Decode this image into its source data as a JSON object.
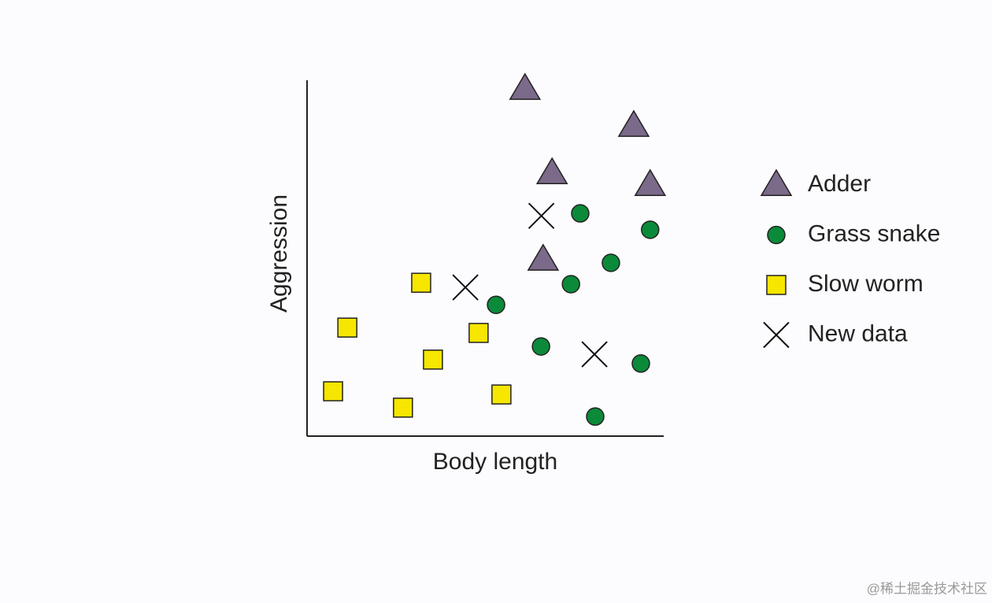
{
  "chart_data": {
    "type": "scatter",
    "x_label": "Body length",
    "y_label": "Aggression",
    "xlim": [
      0,
      100
    ],
    "ylim": [
      0,
      100
    ],
    "series": [
      {
        "name": "Adder",
        "color": "#7b6a8a",
        "marker": "triangle",
        "x": [
          61.1,
          91.6,
          68.7,
          96.2,
          66.2
        ],
        "values": [
          97.6,
          87.2,
          73.9,
          70.6,
          49.6
        ]
      },
      {
        "name": "Grass snake",
        "color": "#0b8a3a",
        "marker": "circle",
        "x": [
          76.6,
          96.2,
          85.2,
          74.0,
          53.0,
          65.6,
          93.6,
          80.8
        ],
        "values": [
          62.6,
          58.0,
          48.7,
          42.7,
          36.9,
          25.2,
          20.4,
          5.5
        ]
      },
      {
        "name": "Slow worm",
        "color": "#f7e600",
        "marker": "square",
        "x": [
          32.0,
          11.3,
          48.1,
          35.3,
          7.3,
          26.9,
          54.5
        ],
        "values": [
          43.1,
          30.5,
          29.0,
          21.5,
          12.6,
          8.0,
          11.7
        ]
      },
      {
        "name": "New data",
        "color": "#111111",
        "marker": "cross",
        "x": [
          65.7,
          44.4,
          80.6
        ],
        "values": [
          61.9,
          41.8,
          23.0
        ]
      }
    ],
    "legend": "right",
    "watermark": "@稀土掘金技术社区"
  }
}
